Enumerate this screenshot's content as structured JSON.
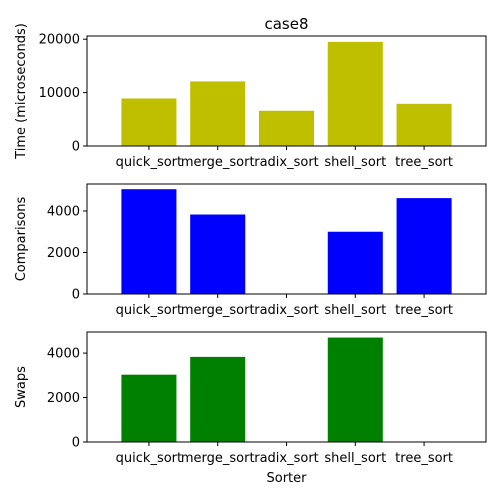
{
  "chart_data": [
    {
      "type": "bar",
      "title": "case8",
      "xlabel": "",
      "ylabel": "Time (microseconds)",
      "categories": [
        "quick_sort",
        "merge_sort",
        "radix_sort",
        "shell_sort",
        "tree_sort"
      ],
      "values": [
        8900,
        12100,
        6600,
        19500,
        7900
      ],
      "ylim": [
        0,
        20600
      ],
      "yticks": [
        0,
        10000,
        20000
      ],
      "color": "#bfbf00"
    },
    {
      "type": "bar",
      "title": "",
      "xlabel": "",
      "ylabel": "Comparisons",
      "categories": [
        "quick_sort",
        "merge_sort",
        "radix_sort",
        "shell_sort",
        "tree_sort"
      ],
      "values": [
        5050,
        3830,
        0,
        3000,
        4620
      ],
      "ylim": [
        0,
        5300
      ],
      "yticks": [
        0,
        2000,
        4000
      ],
      "color": "#0000ff"
    },
    {
      "type": "bar",
      "title": "",
      "xlabel": "Sorter",
      "ylabel": "Swaps",
      "categories": [
        "quick_sort",
        "merge_sort",
        "radix_sort",
        "shell_sort",
        "tree_sort"
      ],
      "values": [
        3030,
        3830,
        0,
        4700,
        0
      ],
      "ylim": [
        0,
        4950
      ],
      "yticks": [
        0,
        2000,
        4000
      ],
      "color": "#008000"
    }
  ]
}
